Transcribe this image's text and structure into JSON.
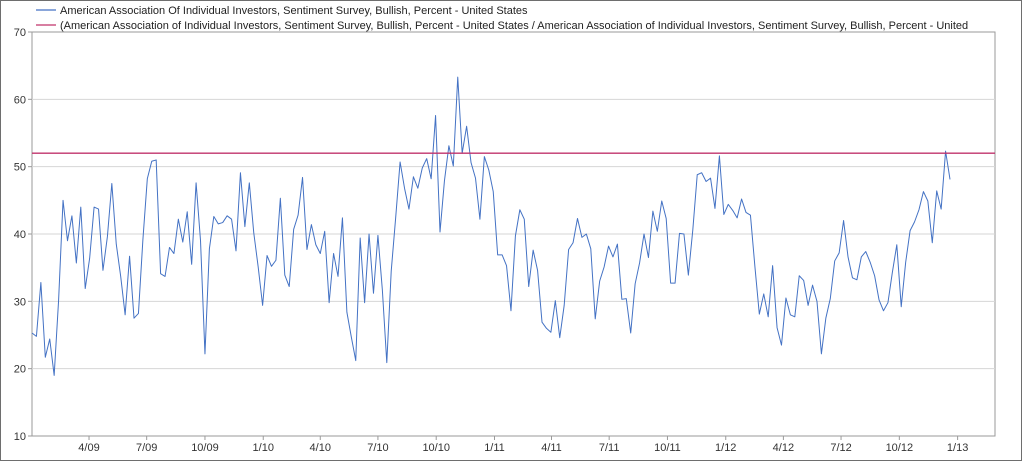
{
  "chart_data": {
    "type": "line",
    "title": "",
    "xlabel": "",
    "ylabel": "",
    "ylim": [
      10,
      70
    ],
    "yticks": [
      10,
      20,
      30,
      40,
      50,
      60,
      70
    ],
    "xlim": [
      "2009-01",
      "2013-03"
    ],
    "xticks": [
      "4/09",
      "7/09",
      "10/09",
      "1/10",
      "4/10",
      "7/10",
      "10/10",
      "1/11",
      "4/11",
      "7/11",
      "10/11",
      "1/12",
      "4/12",
      "7/12",
      "10/12",
      "1/13"
    ],
    "grid": "horizontal",
    "legend_position": "top-left",
    "legend": [
      "American Association Of Individual Investors, Sentiment Survey, Bullish, Percent - United States",
      "(American Association of Individual Investors, Sentiment Survey, Bullish, Percent - United States / American Association of Individual Investors, Sentiment Survey, Bullish, Percent - United"
    ],
    "series": [
      {
        "name": "American Association Of Individual Investors, Sentiment Survey, Bullish, Percent - United States",
        "color": "#4472c4",
        "x_start": "2009-01-01",
        "x_step_days": 7,
        "values": [
          25.3,
          24.8,
          32.8,
          21.7,
          24.4,
          19.0,
          30.2,
          45.0,
          39.0,
          42.7,
          35.7,
          44.0,
          31.9,
          36.4,
          44.0,
          43.7,
          34.6,
          39.6,
          47.5,
          38.5,
          33.7,
          28.0,
          36.7,
          27.5,
          28.2,
          39.1,
          48.2,
          50.8,
          51.0,
          34.1,
          33.7,
          38.0,
          37.1,
          42.2,
          38.8,
          43.3,
          35.5,
          47.6,
          39.0,
          22.2,
          37.8,
          42.6,
          41.5,
          41.7,
          42.7,
          42.2,
          37.5,
          49.1,
          41.1,
          47.6,
          40.2,
          35.1,
          29.4,
          36.8,
          35.2,
          36.1,
          45.3,
          33.9,
          32.2,
          40.7,
          42.8,
          48.4,
          37.7,
          41.4,
          38.4,
          37.1,
          40.4,
          29.8,
          37.1,
          33.7,
          42.4,
          28.4,
          24.7,
          21.2,
          39.4,
          29.8,
          40.0,
          31.2,
          39.8,
          31.7,
          20.9,
          34.5,
          42.4,
          50.7,
          46.8,
          43.7,
          48.5,
          46.8,
          49.8,
          51.2,
          48.2,
          57.6,
          40.3,
          47.9,
          53.1,
          50.1,
          63.3,
          52.0,
          56.0,
          50.6,
          48.3,
          42.2,
          51.5,
          49.5,
          46.3,
          36.9,
          36.9,
          35.3,
          28.6,
          39.7,
          43.6,
          42.2,
          32.2,
          37.6,
          34.6,
          26.9,
          26.0,
          25.4,
          30.1,
          24.6,
          29.4,
          37.7,
          38.7,
          42.3,
          39.5,
          40.0,
          37.8,
          27.4,
          33.0,
          35.1,
          38.2,
          36.6,
          38.5,
          30.3,
          30.4,
          25.3,
          32.6,
          35.7,
          40.0,
          36.5,
          43.4,
          40.4,
          44.9,
          42.3,
          32.7,
          32.7,
          40.1,
          40.0,
          33.9,
          40.6,
          48.8,
          49.1,
          47.8,
          48.3,
          43.8,
          51.6,
          42.9,
          44.4,
          43.5,
          42.4,
          45.2,
          43.2,
          42.8,
          35.2,
          28.1,
          31.1,
          27.7,
          35.3,
          26.1,
          23.5,
          30.5,
          28.0,
          27.7,
          33.8,
          33.1,
          29.4,
          32.4,
          30.0,
          22.2,
          27.5,
          30.4,
          36.0,
          37.2,
          42.0,
          36.6,
          33.5,
          33.2,
          36.6,
          37.4,
          35.8,
          33.8,
          30.2,
          28.6,
          29.8,
          34.3,
          38.4,
          29.2,
          35.8,
          40.5,
          41.8,
          43.6,
          46.3,
          44.9,
          38.7,
          46.4,
          43.7,
          52.3,
          48.1
        ]
      },
      {
        "name": "(American Association of Individual Investors, Sentiment Survey, Bullish, Percent - United States / American Association of Individual Investors, Sentiment Survey, Bullish, Percent - United",
        "color": "#c0336b",
        "type": "constant",
        "values": [
          52.0,
          52.0
        ]
      }
    ]
  }
}
